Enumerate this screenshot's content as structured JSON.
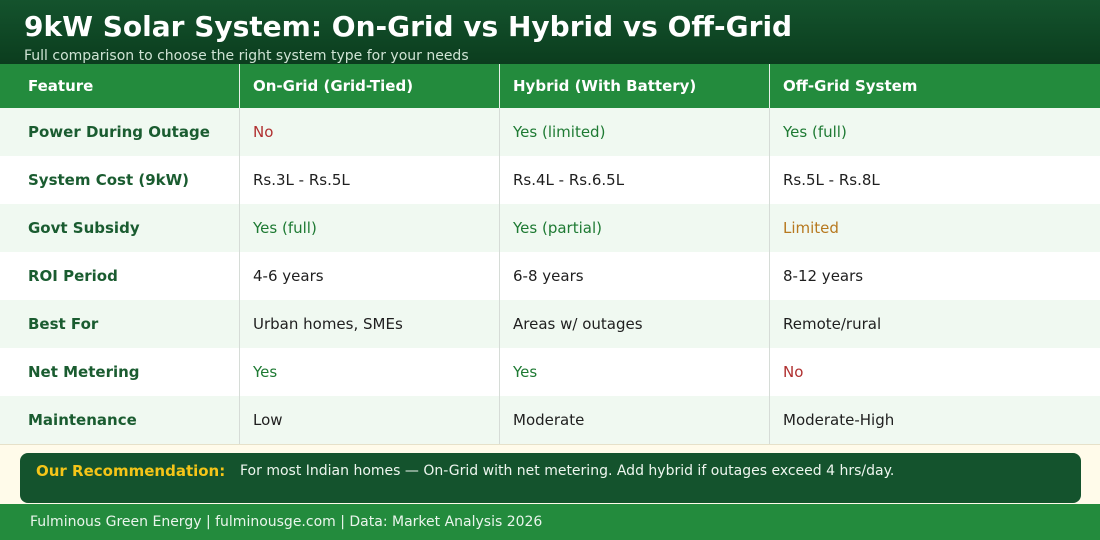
{
  "header": {
    "title": "9kW Solar System: On-Grid vs Hybrid vs Off-Grid",
    "subtitle": "Full comparison to choose the right system type for your needs"
  },
  "table": {
    "columns": [
      "Feature",
      "On-Grid (Grid-Tied)",
      "Hybrid (With Battery)",
      "Off-Grid System"
    ],
    "rows": [
      {
        "feature": "Power During Outage",
        "on_grid": "No",
        "hybrid": "Yes (limited)",
        "off_grid": "Yes (full)"
      },
      {
        "feature": "System Cost (9kW)",
        "on_grid": "Rs.3L - Rs.5L",
        "hybrid": "Rs.4L - Rs.6.5L",
        "off_grid": "Rs.5L - Rs.8L"
      },
      {
        "feature": "Govt Subsidy",
        "on_grid": "Yes (full)",
        "hybrid": "Yes (partial)",
        "off_grid": "Limited"
      },
      {
        "feature": "ROI Period",
        "on_grid": "4-6 years",
        "hybrid": "6-8 years",
        "off_grid": "8-12 years"
      },
      {
        "feature": "Best For",
        "on_grid": "Urban homes, SMEs",
        "hybrid": "Areas w/ outages",
        "off_grid": "Remote/rural"
      },
      {
        "feature": "Net Metering",
        "on_grid": "Yes",
        "hybrid": "Yes",
        "off_grid": "No"
      },
      {
        "feature": "Maintenance",
        "on_grid": "Low",
        "hybrid": "Moderate",
        "off_grid": "Moderate-High"
      }
    ]
  },
  "recommendation": {
    "label": "Our Recommendation:",
    "text": "For most Indian homes — On-Grid with net metering. Add hybrid if outages exceed 4 hrs/day."
  },
  "footer": {
    "text": "Fulminous Green Energy  |  fulminousge.com  |  Data: Market Analysis 2026"
  },
  "colors": {
    "header_bg": "#14532d",
    "table_head_bg": "#238b3d",
    "feature_text": "#1a5c30",
    "positive": "#1e7a33",
    "negative": "#b03030",
    "caution": "#b7791f",
    "highlight": "#f5c518"
  }
}
